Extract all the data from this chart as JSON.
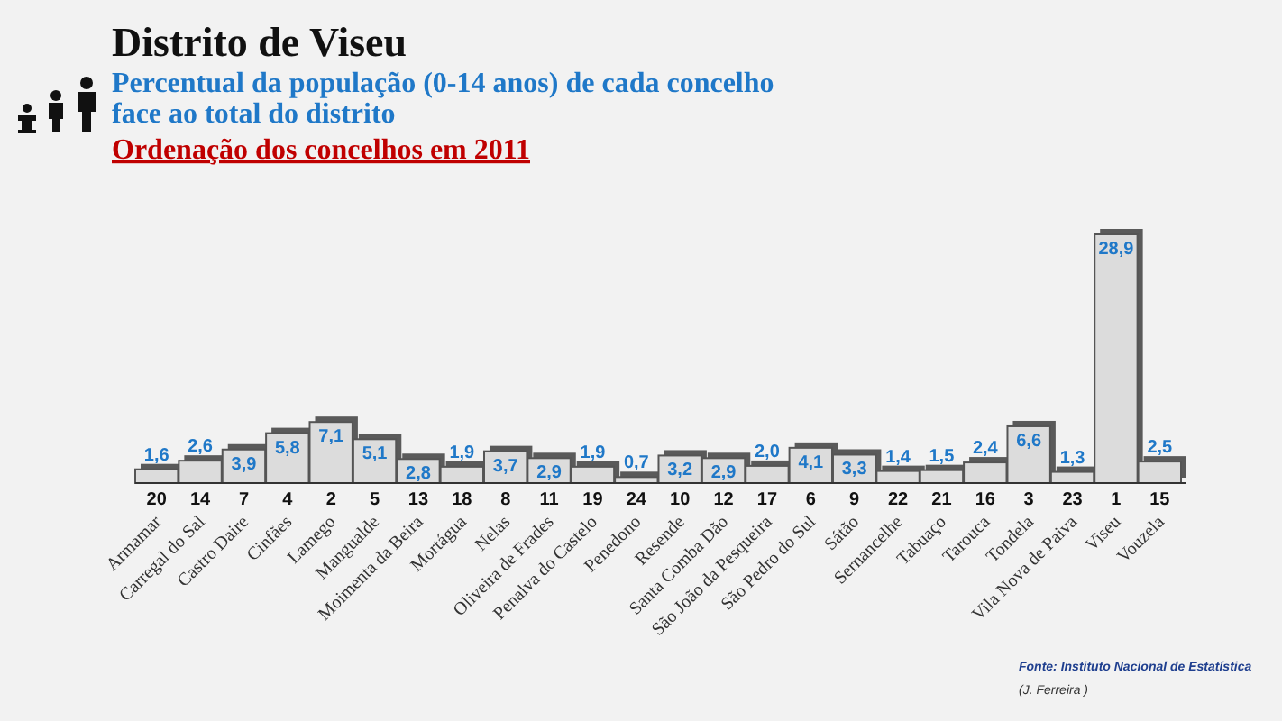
{
  "chart_data": {
    "type": "bar",
    "title": "Distrito de Viseu",
    "subtitle": "Percentual da população (0-14 anos) de cada concelho face ao total do distrito",
    "categories": [
      "Armamar",
      "Carregal do Sal",
      "Castro Daire",
      "Cinfães",
      "Lamego",
      "Mangualde",
      "Moimenta da Beira",
      "Mortágua",
      "Nelas",
      "Oliveira de Frades",
      "Penalva do Castelo",
      "Penedono",
      "Resende",
      "Santa Comba Dão",
      "São João da Pesqueira",
      "São Pedro do Sul",
      "Sátão",
      "Sernancelhe",
      "Tabuaço",
      "Tarouca",
      "Tondela",
      "Vila Nova de Paiva",
      "Viseu",
      "Vouzela"
    ],
    "values": [
      1.6,
      2.6,
      3.9,
      5.8,
      7.1,
      5.1,
      2.8,
      1.9,
      3.7,
      2.9,
      1.9,
      0.7,
      3.2,
      2.9,
      2.0,
      4.1,
      3.3,
      1.4,
      1.5,
      2.4,
      6.6,
      1.3,
      28.9,
      2.5
    ],
    "value_labels": [
      "1,6",
      "2,6",
      "3,9",
      "5,8",
      "7,1",
      "5,1",
      "2,8",
      "1,9",
      "3,7",
      "2,9",
      "1,9",
      "0,7",
      "3,2",
      "2,9",
      "2,0",
      "4,1",
      "3,3",
      "1,4",
      "1,5",
      "2,4",
      "6,6",
      "1,3",
      "28,9",
      "2,5"
    ],
    "color": "#dcdcdc",
    "annotations": [
      "Ordenação dos concelhos em 2011",
      "Fonte: Instituto Nacional de Estatística",
      "(J. Ferreira )",
      "20",
      "14",
      "7",
      "4",
      "2",
      "5",
      "13",
      "18",
      "8",
      "11",
      "19",
      "24",
      "10",
      "12",
      "17",
      "6",
      "9",
      "22",
      "21",
      "16",
      "3",
      "23",
      "1",
      "15"
    ]
  }
}
